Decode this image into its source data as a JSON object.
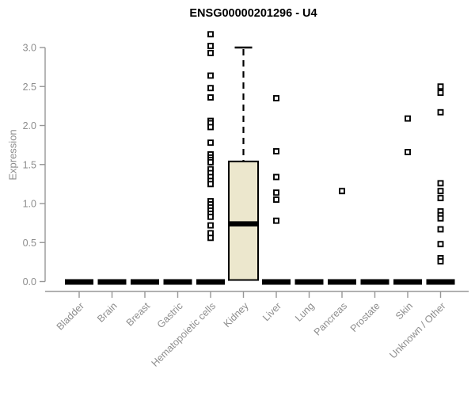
{
  "chart_data": {
    "type": "boxplot",
    "title": "ENSG00000201296 - U4",
    "ylabel": "Expression",
    "ylim": [
      0.0,
      3.2
    ],
    "yticks": [
      "0.0",
      "0.5",
      "1.0",
      "1.5",
      "2.0",
      "2.5",
      "3.0"
    ],
    "ytick_values": [
      0.0,
      0.5,
      1.0,
      1.5,
      2.0,
      2.5,
      3.0
    ],
    "grid": false,
    "legend": "none",
    "categories": [
      "Bladder",
      "Brain",
      "Breast",
      "Gastric",
      "Hematopoietic cells",
      "Kidney",
      "Liver",
      "Lung",
      "Pancreas",
      "Prostate",
      "Skin",
      "Unknown / Other"
    ],
    "series": [
      {
        "category": "Bladder",
        "median": 0,
        "q1": 0,
        "q3": 0,
        "whisker_low": 0,
        "whisker_high": 0,
        "outliers": []
      },
      {
        "category": "Brain",
        "median": 0,
        "q1": 0,
        "q3": 0,
        "whisker_low": 0,
        "whisker_high": 0,
        "outliers": []
      },
      {
        "category": "Breast",
        "median": 0,
        "q1": 0,
        "q3": 0,
        "whisker_low": 0,
        "whisker_high": 0,
        "outliers": []
      },
      {
        "category": "Gastric",
        "median": 0,
        "q1": 0,
        "q3": 0,
        "whisker_low": 0,
        "whisker_high": 0,
        "outliers": []
      },
      {
        "category": "Hematopoietic cells",
        "median": 0,
        "q1": 0,
        "q3": 0,
        "whisker_low": 0,
        "whisker_high": 0,
        "outliers": [
          3.17,
          3.02,
          2.93,
          2.64,
          2.48,
          2.36,
          2.06,
          2.03,
          1.98,
          1.78,
          1.63,
          1.59,
          1.56,
          1.53,
          1.44,
          1.39,
          1.34,
          1.29,
          1.25,
          1.03,
          0.99,
          0.95,
          0.91,
          0.87,
          0.83,
          0.72,
          0.62,
          0.56
        ]
      },
      {
        "category": "Kidney",
        "median": 0.74,
        "q1": 0.02,
        "q3": 1.54,
        "whisker_low": 0.02,
        "whisker_high": 3.0,
        "outliers": []
      },
      {
        "category": "Liver",
        "median": 0,
        "q1": 0,
        "q3": 0,
        "whisker_low": 0,
        "whisker_high": 0,
        "outliers": [
          2.35,
          1.67,
          1.34,
          1.14,
          1.05,
          0.78
        ]
      },
      {
        "category": "Lung",
        "median": 0,
        "q1": 0,
        "q3": 0,
        "whisker_low": 0,
        "whisker_high": 0,
        "outliers": []
      },
      {
        "category": "Pancreas",
        "median": 0,
        "q1": 0,
        "q3": 0,
        "whisker_low": 0,
        "whisker_high": 0,
        "outliers": [
          1.16
        ]
      },
      {
        "category": "Prostate",
        "median": 0,
        "q1": 0,
        "q3": 0,
        "whisker_low": 0,
        "whisker_high": 0,
        "outliers": []
      },
      {
        "category": "Skin",
        "median": 0,
        "q1": 0,
        "q3": 0,
        "whisker_low": 0,
        "whisker_high": 0,
        "outliers": [
          2.09,
          1.66
        ]
      },
      {
        "category": "Unknown / Other",
        "median": 0,
        "q1": 0,
        "q3": 0,
        "whisker_low": 0,
        "whisker_high": 0,
        "outliers": [
          2.5,
          2.42,
          2.17,
          1.26,
          1.16,
          1.07,
          0.9,
          0.85,
          0.81,
          0.67,
          0.48,
          0.3,
          0.26
        ]
      }
    ],
    "colors": {
      "box_fill": "#ece7cd",
      "box_stroke": "#000000",
      "median": "#000000",
      "zero_bar": "#000000",
      "whisker": "#000000",
      "outlier_stroke": "#000000",
      "outlier_fill": "#ffffff",
      "axis_line": "#979797",
      "tick_label": "#8d8d8d",
      "title": "#000000"
    }
  }
}
